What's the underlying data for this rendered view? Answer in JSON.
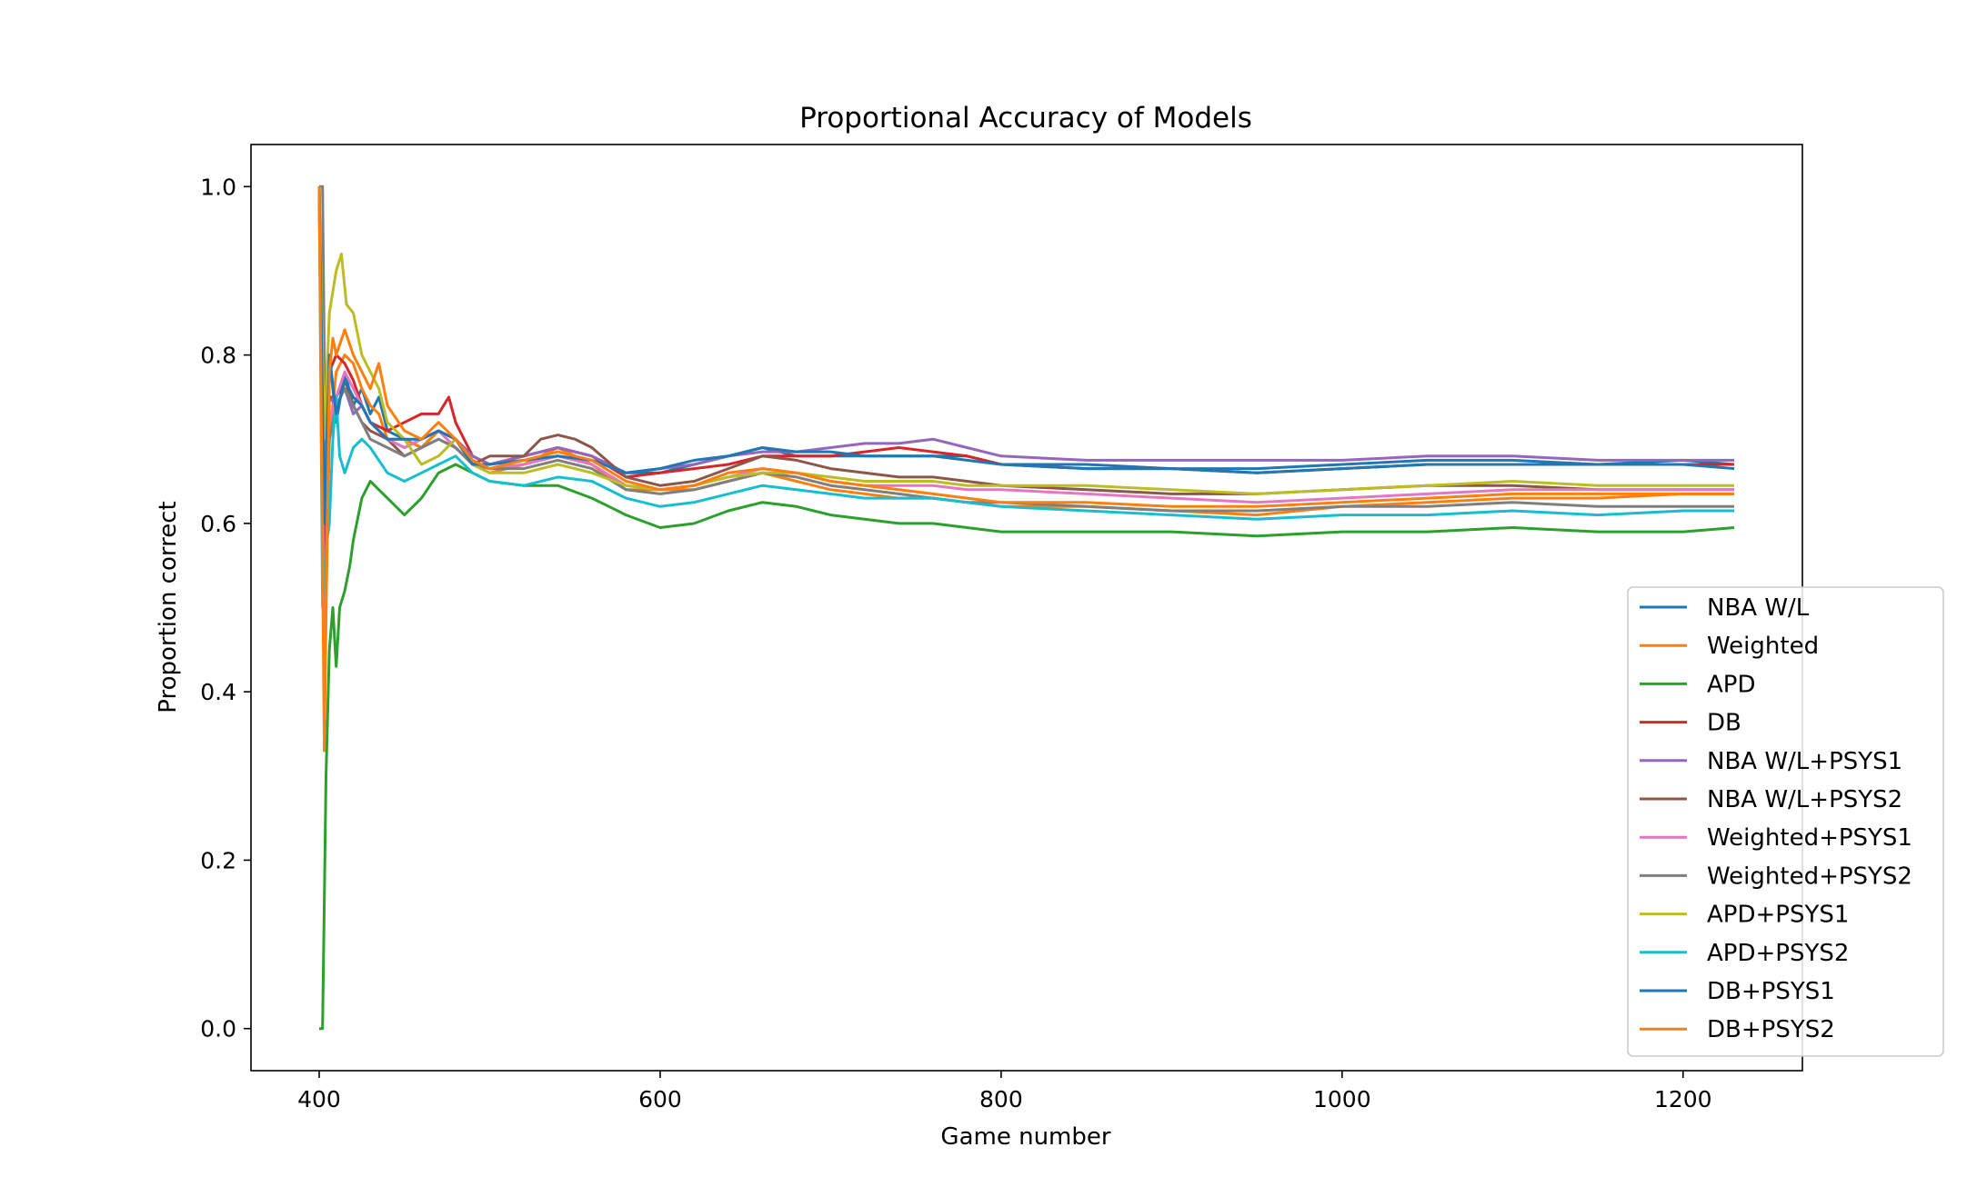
{
  "chart_data": {
    "type": "line",
    "title": "Proportional Accuracy of Models",
    "xlabel": "Game number",
    "ylabel": "Proportion correct",
    "xlim": [
      360,
      1270
    ],
    "ylim": [
      -0.05,
      1.05
    ],
    "xticks": [
      400,
      600,
      800,
      1000,
      1200
    ],
    "yticks": [
      0.0,
      0.2,
      0.4,
      0.6,
      0.8,
      1.0
    ],
    "grid": false,
    "legend_position": "lower-right",
    "series": [
      {
        "name": "NBA W/L",
        "color": "#1f77b4",
        "x": [
          400,
          403,
          406,
          410,
          415,
          420,
          425,
          430,
          435,
          440,
          450,
          460,
          470,
          480,
          490,
          500,
          520,
          540,
          560,
          580,
          600,
          620,
          640,
          660,
          680,
          700,
          720,
          740,
          760,
          780,
          800,
          850,
          900,
          950,
          1000,
          1050,
          1100,
          1150,
          1200,
          1230
        ],
        "y": [
          1.0,
          0.5,
          0.8,
          0.72,
          0.78,
          0.74,
          0.76,
          0.73,
          0.75,
          0.71,
          0.7,
          0.69,
          0.71,
          0.7,
          0.68,
          0.67,
          0.68,
          0.69,
          0.68,
          0.66,
          0.66,
          0.67,
          0.68,
          0.69,
          0.68,
          0.68,
          0.68,
          0.68,
          0.68,
          0.68,
          0.67,
          0.67,
          0.665,
          0.665,
          0.67,
          0.675,
          0.675,
          0.67,
          0.675,
          0.67
        ]
      },
      {
        "name": "Weighted",
        "color": "#ff7f0e",
        "x": [
          400,
          403,
          406,
          410,
          415,
          420,
          425,
          430,
          435,
          440,
          450,
          460,
          470,
          480,
          490,
          500,
          520,
          540,
          560,
          580,
          600,
          620,
          640,
          660,
          680,
          700,
          720,
          740,
          760,
          780,
          800,
          850,
          900,
          950,
          1000,
          1050,
          1100,
          1150,
          1200,
          1230
        ],
        "y": [
          1.0,
          0.4,
          0.7,
          0.78,
          0.8,
          0.79,
          0.76,
          0.74,
          0.73,
          0.7,
          0.7,
          0.69,
          0.71,
          0.7,
          0.67,
          0.66,
          0.67,
          0.69,
          0.67,
          0.64,
          0.64,
          0.64,
          0.65,
          0.66,
          0.65,
          0.64,
          0.635,
          0.63,
          0.63,
          0.625,
          0.62,
          0.62,
          0.615,
          0.61,
          0.62,
          0.625,
          0.63,
          0.63,
          0.635,
          0.635
        ]
      },
      {
        "name": "APD",
        "color": "#2ca02c",
        "x": [
          400,
          402,
          404,
          406,
          408,
          410,
          412,
          415,
          418,
          420,
          425,
          430,
          435,
          440,
          450,
          460,
          470,
          480,
          490,
          500,
          520,
          540,
          560,
          570,
          580,
          600,
          620,
          640,
          660,
          680,
          700,
          720,
          740,
          760,
          780,
          800,
          850,
          900,
          950,
          1000,
          1050,
          1100,
          1150,
          1200,
          1230
        ],
        "y": [
          0.0,
          0.0,
          0.3,
          0.45,
          0.5,
          0.43,
          0.5,
          0.52,
          0.55,
          0.58,
          0.63,
          0.65,
          0.64,
          0.63,
          0.61,
          0.63,
          0.66,
          0.67,
          0.66,
          0.65,
          0.645,
          0.645,
          0.63,
          0.62,
          0.61,
          0.595,
          0.6,
          0.615,
          0.625,
          0.62,
          0.61,
          0.605,
          0.6,
          0.6,
          0.595,
          0.59,
          0.59,
          0.59,
          0.585,
          0.59,
          0.59,
          0.595,
          0.59,
          0.59,
          0.595
        ]
      },
      {
        "name": "DB",
        "color": "#d62728",
        "x": [
          400,
          403,
          406,
          410,
          415,
          420,
          425,
          430,
          440,
          450,
          460,
          470,
          476,
          480,
          490,
          500,
          520,
          540,
          560,
          580,
          600,
          620,
          640,
          660,
          680,
          700,
          720,
          740,
          760,
          780,
          800,
          850,
          900,
          950,
          1000,
          1050,
          1100,
          1150,
          1200,
          1230
        ],
        "y": [
          1.0,
          0.45,
          0.78,
          0.8,
          0.79,
          0.77,
          0.74,
          0.72,
          0.71,
          0.72,
          0.73,
          0.73,
          0.75,
          0.72,
          0.68,
          0.67,
          0.68,
          0.69,
          0.68,
          0.655,
          0.66,
          0.665,
          0.67,
          0.68,
          0.68,
          0.68,
          0.685,
          0.69,
          0.685,
          0.68,
          0.67,
          0.665,
          0.665,
          0.66,
          0.665,
          0.67,
          0.67,
          0.67,
          0.67,
          0.67
        ]
      },
      {
        "name": "NBA W/L+PSYS1",
        "color": "#9467bd",
        "x": [
          400,
          403,
          406,
          410,
          415,
          420,
          425,
          430,
          440,
          450,
          460,
          470,
          480,
          490,
          500,
          520,
          540,
          560,
          580,
          600,
          620,
          640,
          660,
          680,
          700,
          720,
          740,
          760,
          780,
          800,
          850,
          900,
          950,
          1000,
          1050,
          1100,
          1150,
          1200,
          1230
        ],
        "y": [
          1.0,
          0.5,
          0.75,
          0.74,
          0.76,
          0.73,
          0.74,
          0.72,
          0.7,
          0.69,
          0.7,
          0.71,
          0.7,
          0.68,
          0.67,
          0.68,
          0.69,
          0.68,
          0.66,
          0.665,
          0.67,
          0.68,
          0.685,
          0.685,
          0.69,
          0.695,
          0.695,
          0.7,
          0.69,
          0.68,
          0.675,
          0.675,
          0.675,
          0.675,
          0.68,
          0.68,
          0.675,
          0.675,
          0.675
        ]
      },
      {
        "name": "NBA W/L+PSYS2",
        "color": "#8c564b",
        "x": [
          400,
          403,
          406,
          410,
          415,
          420,
          425,
          430,
          440,
          450,
          460,
          470,
          480,
          490,
          500,
          520,
          530,
          540,
          550,
          560,
          580,
          600,
          620,
          640,
          660,
          680,
          700,
          720,
          740,
          760,
          780,
          800,
          850,
          900,
          950,
          1000,
          1050,
          1100,
          1150,
          1200,
          1230
        ],
        "y": [
          1.0,
          0.5,
          0.75,
          0.75,
          0.77,
          0.74,
          0.72,
          0.71,
          0.7,
          0.68,
          0.69,
          0.7,
          0.69,
          0.67,
          0.68,
          0.68,
          0.7,
          0.705,
          0.7,
          0.69,
          0.655,
          0.645,
          0.65,
          0.665,
          0.68,
          0.675,
          0.665,
          0.66,
          0.655,
          0.655,
          0.65,
          0.645,
          0.64,
          0.635,
          0.635,
          0.64,
          0.645,
          0.645,
          0.64,
          0.64,
          0.64
        ]
      },
      {
        "name": "Weighted+PSYS1",
        "color": "#e377c2",
        "x": [
          400,
          403,
          406,
          410,
          415,
          420,
          425,
          430,
          440,
          450,
          460,
          470,
          480,
          490,
          500,
          520,
          540,
          560,
          580,
          600,
          620,
          640,
          660,
          680,
          700,
          720,
          740,
          760,
          780,
          800,
          850,
          900,
          950,
          1000,
          1050,
          1100,
          1150,
          1200,
          1230
        ],
        "y": [
          1.0,
          0.45,
          0.72,
          0.75,
          0.78,
          0.76,
          0.74,
          0.72,
          0.7,
          0.69,
          0.7,
          0.71,
          0.69,
          0.67,
          0.665,
          0.67,
          0.68,
          0.67,
          0.645,
          0.64,
          0.645,
          0.655,
          0.665,
          0.66,
          0.65,
          0.645,
          0.645,
          0.645,
          0.64,
          0.64,
          0.635,
          0.63,
          0.625,
          0.63,
          0.635,
          0.64,
          0.64,
          0.64,
          0.64
        ]
      },
      {
        "name": "Weighted+PSYS2",
        "color": "#7f7f7f",
        "x": [
          400,
          401,
          402,
          404,
          406,
          410,
          415,
          420,
          425,
          430,
          440,
          450,
          460,
          470,
          480,
          490,
          500,
          520,
          540,
          560,
          580,
          600,
          620,
          640,
          660,
          680,
          700,
          720,
          740,
          760,
          780,
          800,
          850,
          900,
          950,
          1000,
          1050,
          1100,
          1150,
          1200,
          1230
        ],
        "y": [
          1.0,
          1.0,
          1.0,
          0.6,
          0.7,
          0.74,
          0.76,
          0.74,
          0.72,
          0.7,
          0.69,
          0.68,
          0.69,
          0.7,
          0.69,
          0.67,
          0.665,
          0.665,
          0.675,
          0.665,
          0.64,
          0.635,
          0.64,
          0.65,
          0.66,
          0.655,
          0.645,
          0.64,
          0.635,
          0.63,
          0.625,
          0.625,
          0.62,
          0.615,
          0.615,
          0.62,
          0.62,
          0.625,
          0.62,
          0.62,
          0.62
        ]
      },
      {
        "name": "APD+PSYS1",
        "color": "#bcbd22",
        "x": [
          400,
          403,
          406,
          410,
          413,
          416,
          420,
          425,
          430,
          435,
          440,
          450,
          460,
          470,
          480,
          490,
          500,
          520,
          540,
          560,
          580,
          600,
          620,
          640,
          660,
          680,
          700,
          720,
          740,
          760,
          780,
          800,
          850,
          900,
          950,
          1000,
          1050,
          1100,
          1150,
          1200,
          1230
        ],
        "y": [
          1.0,
          0.7,
          0.85,
          0.9,
          0.92,
          0.86,
          0.85,
          0.8,
          0.78,
          0.76,
          0.72,
          0.7,
          0.67,
          0.68,
          0.7,
          0.67,
          0.66,
          0.66,
          0.67,
          0.66,
          0.645,
          0.64,
          0.645,
          0.655,
          0.66,
          0.66,
          0.655,
          0.65,
          0.65,
          0.65,
          0.645,
          0.645,
          0.645,
          0.64,
          0.635,
          0.64,
          0.645,
          0.65,
          0.645,
          0.645,
          0.645
        ]
      },
      {
        "name": "APD+PSYS2",
        "color": "#17becf",
        "x": [
          400,
          402,
          404,
          406,
          408,
          410,
          412,
          415,
          420,
          425,
          430,
          440,
          450,
          460,
          470,
          480,
          490,
          500,
          520,
          540,
          560,
          580,
          600,
          620,
          640,
          660,
          680,
          700,
          720,
          740,
          760,
          780,
          800,
          850,
          900,
          950,
          1000,
          1050,
          1100,
          1150,
          1200,
          1230
        ],
        "y": [
          1.0,
          0.5,
          0.57,
          0.6,
          0.7,
          0.75,
          0.68,
          0.66,
          0.69,
          0.7,
          0.69,
          0.66,
          0.65,
          0.66,
          0.67,
          0.68,
          0.66,
          0.65,
          0.645,
          0.655,
          0.65,
          0.63,
          0.62,
          0.625,
          0.635,
          0.645,
          0.64,
          0.635,
          0.63,
          0.63,
          0.63,
          0.625,
          0.62,
          0.615,
          0.61,
          0.605,
          0.61,
          0.61,
          0.615,
          0.61,
          0.615,
          0.615
        ]
      },
      {
        "name": "DB+PSYS1",
        "color": "#1f77b4",
        "x": [
          400,
          403,
          406,
          410,
          415,
          420,
          425,
          430,
          440,
          450,
          460,
          470,
          480,
          490,
          500,
          520,
          540,
          560,
          580,
          600,
          620,
          640,
          660,
          680,
          700,
          720,
          740,
          760,
          780,
          800,
          850,
          900,
          950,
          1000,
          1050,
          1100,
          1150,
          1200,
          1230
        ],
        "y": [
          1.0,
          0.6,
          0.8,
          0.73,
          0.77,
          0.75,
          0.74,
          0.72,
          0.7,
          0.7,
          0.7,
          0.71,
          0.7,
          0.67,
          0.67,
          0.675,
          0.68,
          0.675,
          0.66,
          0.665,
          0.675,
          0.68,
          0.69,
          0.685,
          0.685,
          0.68,
          0.68,
          0.68,
          0.675,
          0.67,
          0.665,
          0.665,
          0.66,
          0.665,
          0.67,
          0.67,
          0.67,
          0.67,
          0.665
        ]
      },
      {
        "name": "DB+PSYS2",
        "color": "#ff7f0e",
        "x": [
          400,
          403,
          406,
          408,
          410,
          415,
          420,
          425,
          430,
          435,
          440,
          450,
          460,
          470,
          480,
          490,
          500,
          520,
          540,
          560,
          580,
          600,
          620,
          640,
          660,
          680,
          700,
          720,
          740,
          760,
          780,
          800,
          850,
          900,
          950,
          1000,
          1050,
          1100,
          1150,
          1200,
          1230
        ],
        "y": [
          1.0,
          0.33,
          0.78,
          0.82,
          0.8,
          0.83,
          0.8,
          0.78,
          0.76,
          0.79,
          0.74,
          0.71,
          0.7,
          0.72,
          0.7,
          0.675,
          0.665,
          0.675,
          0.685,
          0.675,
          0.65,
          0.64,
          0.645,
          0.66,
          0.665,
          0.66,
          0.65,
          0.645,
          0.64,
          0.635,
          0.63,
          0.625,
          0.625,
          0.62,
          0.62,
          0.625,
          0.63,
          0.635,
          0.635,
          0.635,
          0.635
        ]
      }
    ]
  }
}
